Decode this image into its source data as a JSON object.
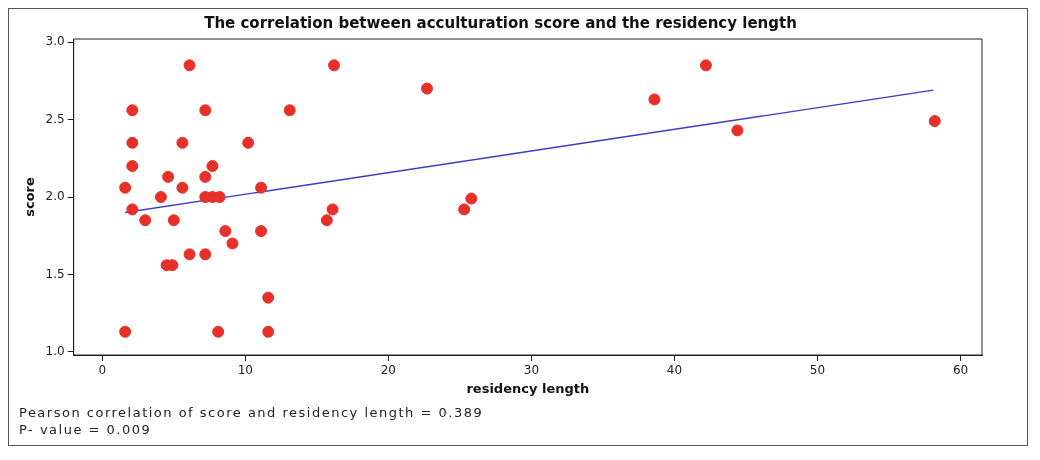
{
  "chart_data": {
    "type": "scatter",
    "title": "The correlation between acculturation score and the residency length",
    "xlabel": "residency length",
    "ylabel": "score",
    "xlim": [
      -2,
      61.5
    ],
    "xticks": [
      0,
      10,
      20,
      30,
      40,
      50,
      60
    ],
    "ylim": [
      0.98,
      3.02
    ],
    "yticks": [
      {
        "value": 1,
        "label": "1.0"
      },
      {
        "value": 1.5,
        "label": "1.5"
      },
      {
        "value": 2,
        "label": "2.0"
      },
      {
        "value": 2.5,
        "label": "2.5"
      },
      {
        "value": 3,
        "label": "3.0"
      }
    ],
    "grid": false,
    "legend": false,
    "marker": "circle",
    "series": [
      {
        "color": "#e8302a",
        "x": [
          6.1,
          2.1,
          7.2,
          13.1,
          2.1,
          5.6,
          10.2,
          2.1,
          7.7,
          4.6,
          7.2,
          1.6,
          5.6,
          11.1,
          4.1,
          7.2,
          7.7,
          8.2,
          2.1,
          3.0,
          5.0,
          8.6,
          11.1,
          9.1,
          6.1,
          7.2,
          4.5,
          4.9,
          11.6,
          1.6,
          8.1,
          11.6,
          16.1,
          15.7,
          16.2,
          22.7,
          25.8,
          25.3,
          38.6,
          42.2,
          44.4,
          58.2
        ],
        "values": [
          2.85,
          2.56,
          2.56,
          2.56,
          2.35,
          2.35,
          2.35,
          2.2,
          2.2,
          2.13,
          2.13,
          2.06,
          2.06,
          2.06,
          2.0,
          2.0,
          2.0,
          2.0,
          1.92,
          1.85,
          1.85,
          1.78,
          1.78,
          1.7,
          1.63,
          1.63,
          1.56,
          1.56,
          1.35,
          1.13,
          1.13,
          1.13,
          1.92,
          1.85,
          2.85,
          2.7,
          1.99,
          1.92,
          2.63,
          2.85,
          2.43,
          2.49
        ]
      },
      {
        "type": "line",
        "color": "#3a3ac8",
        "marker": "none",
        "x": [
          1.6,
          58.1
        ],
        "values": [
          1.9,
          2.69
        ]
      }
    ],
    "annotations": [
      "Pearson correlation of score and residency length = 0.389",
      "P- value = 0.009"
    ]
  }
}
